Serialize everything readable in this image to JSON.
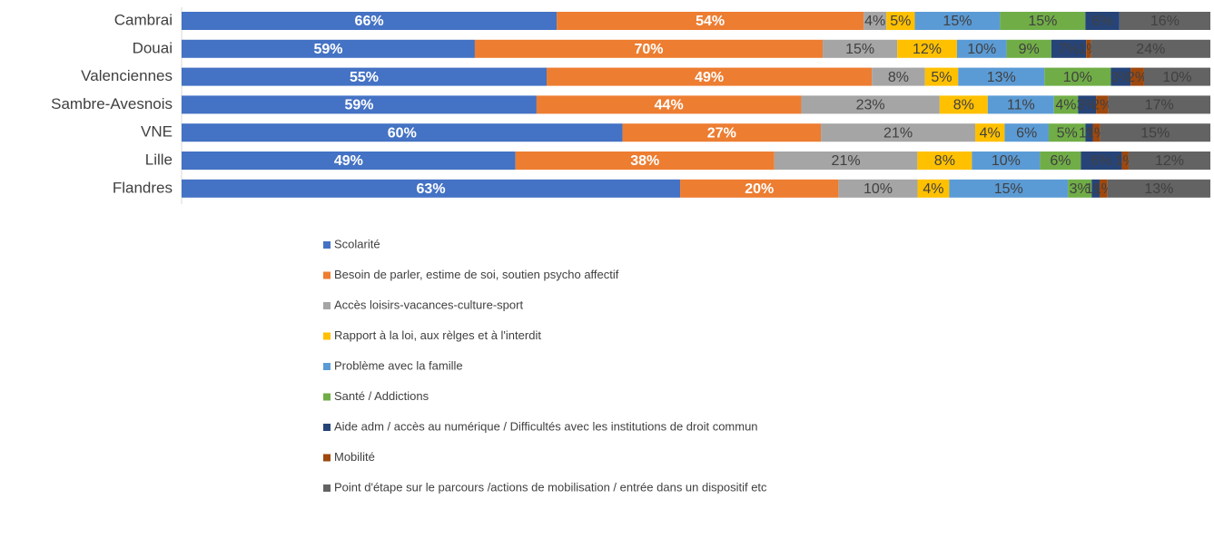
{
  "chart_data": {
    "type": "stacked_bar_100",
    "categories": [
      "Cambrai",
      "Douai",
      "Valenciennes",
      "Sambre-Avesnois",
      "VNE",
      "Lille",
      "Flandres"
    ],
    "series": [
      {
        "name": "Scolarité",
        "color": "#4472c4",
        "values": [
          66,
          59,
          55,
          59,
          60,
          49,
          63
        ],
        "value_labels": [
          "66%",
          "59%",
          "55%",
          "59%",
          "60%",
          "49%",
          "63%"
        ]
      },
      {
        "name": "Besoin de parler, estime de soi, soutien psycho affectif",
        "color": "#ed7d31",
        "values": [
          54,
          70,
          49,
          44,
          27,
          38,
          20
        ],
        "value_labels": [
          "54%",
          "70%",
          "49%",
          "44%",
          "27%",
          "38%",
          "20%"
        ]
      },
      {
        "name": "Accès loisirs-vacances-culture-sport",
        "color": "#a5a5a5",
        "values": [
          4,
          15,
          8,
          23,
          21,
          21,
          10
        ],
        "value_labels": [
          "4%",
          "15%",
          "8%",
          "23%",
          "21%",
          "21%",
          "10%"
        ]
      },
      {
        "name": "Rapport à la loi, aux rèlges et à l'interdit",
        "color": "#ffc000",
        "values": [
          5,
          12,
          5,
          8,
          4,
          8,
          4
        ],
        "value_labels": [
          "5%",
          "12%",
          "5%",
          "8%",
          "4%",
          "8%",
          "4%"
        ]
      },
      {
        "name": "Problème avec la famille",
        "color": "#5b9bd5",
        "values": [
          15,
          10,
          13,
          11,
          6,
          10,
          15
        ],
        "value_labels": [
          "15%",
          "10%",
          "13%",
          "11%",
          "6%",
          "10%",
          "15%"
        ]
      },
      {
        "name": "Santé / Addictions",
        "color": "#70ad47",
        "values": [
          15,
          9,
          10,
          4,
          5,
          6,
          3
        ],
        "value_labels": [
          "15%",
          "9%",
          "10%",
          "4%",
          "5%",
          "6%",
          "3%"
        ]
      },
      {
        "name": "Aide adm / accès au numérique / Difficultés avec les institutions de droit commun",
        "color": "#264478",
        "values": [
          6,
          7,
          3,
          3,
          1,
          6,
          1
        ],
        "value_labels": [
          "6%",
          "7%",
          "3%",
          "3%",
          "1%",
          "6%",
          "1%"
        ]
      },
      {
        "name": "Mobilité",
        "color": "#9e480e",
        "values": [
          0,
          1,
          2,
          2,
          1,
          1,
          1
        ],
        "value_labels": [
          "0%",
          "1%",
          "2%",
          "2%",
          "1%",
          "1%",
          "1%"
        ]
      },
      {
        "name": "Point d'étape sur le parcours /actions de mobilisation / entrée dans un dispositif etc",
        "color": "#636363",
        "values": [
          16,
          24,
          10,
          17,
          15,
          12,
          13
        ],
        "value_labels": [
          "16%",
          "24%",
          "10%",
          "17%",
          "15%",
          "12%",
          "13%"
        ]
      }
    ]
  }
}
